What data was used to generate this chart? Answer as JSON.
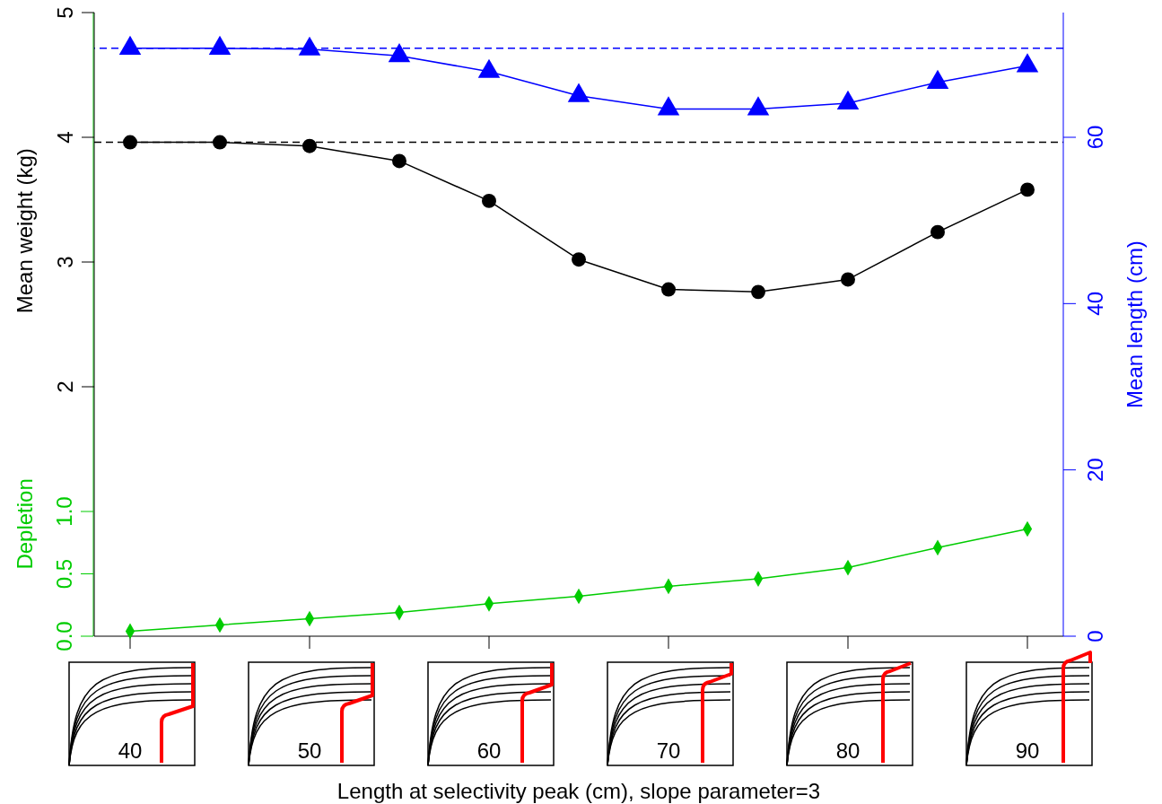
{
  "chart_data": {
    "type": "line",
    "xlabel": "Length at selectivity peak (cm), slope parameter=3",
    "ylabel": "Mean weight (kg)",
    "y2label": "Mean length (cm)",
    "y3label": "Depletion",
    "x": [
      40,
      45,
      50,
      55,
      60,
      65,
      70,
      75,
      80,
      85,
      90
    ],
    "xlim": [
      38,
      92
    ],
    "xticks": [
      40,
      50,
      60,
      70,
      80,
      90
    ],
    "ylim": [
      0,
      5
    ],
    "yticks": [
      2,
      3,
      4,
      5
    ],
    "y2lim": [
      0,
      75
    ],
    "y2ticks": [
      0,
      20,
      40,
      60
    ],
    "y3lim": [
      0,
      5
    ],
    "y3ticks": [
      {
        "value": 0,
        "label": "0.0"
      },
      {
        "value": 0.5,
        "label": "0.5"
      },
      {
        "value": 1,
        "label": "1.0"
      }
    ],
    "series": [
      {
        "color": "#000000",
        "marker": "circle",
        "axis": "y",
        "values": [
          3.96,
          3.96,
          3.93,
          3.81,
          3.49,
          3.02,
          2.78,
          2.76,
          2.86,
          3.24,
          3.58
        ]
      },
      {
        "color": "#0000ff",
        "marker": "triangle",
        "axis": "y2",
        "values": [
          70.7,
          70.7,
          70.6,
          69.8,
          67.9,
          65.0,
          63.4,
          63.4,
          64.1,
          66.6,
          68.6
        ]
      },
      {
        "color": "#00cc00",
        "marker": "diamond",
        "axis": "y3",
        "values": [
          0.04,
          0.09,
          0.14,
          0.19,
          0.26,
          0.32,
          0.4,
          0.46,
          0.55,
          0.71,
          0.86
        ]
      }
    ],
    "ref_lines": [
      {
        "axis": "y",
        "value": 3.96,
        "color": "#000000",
        "line_style": "dashed"
      },
      {
        "axis": "y2",
        "value": 70.7,
        "color": "#0000ff",
        "line_style": "dashed"
      }
    ],
    "line_style": "solid"
  }
}
